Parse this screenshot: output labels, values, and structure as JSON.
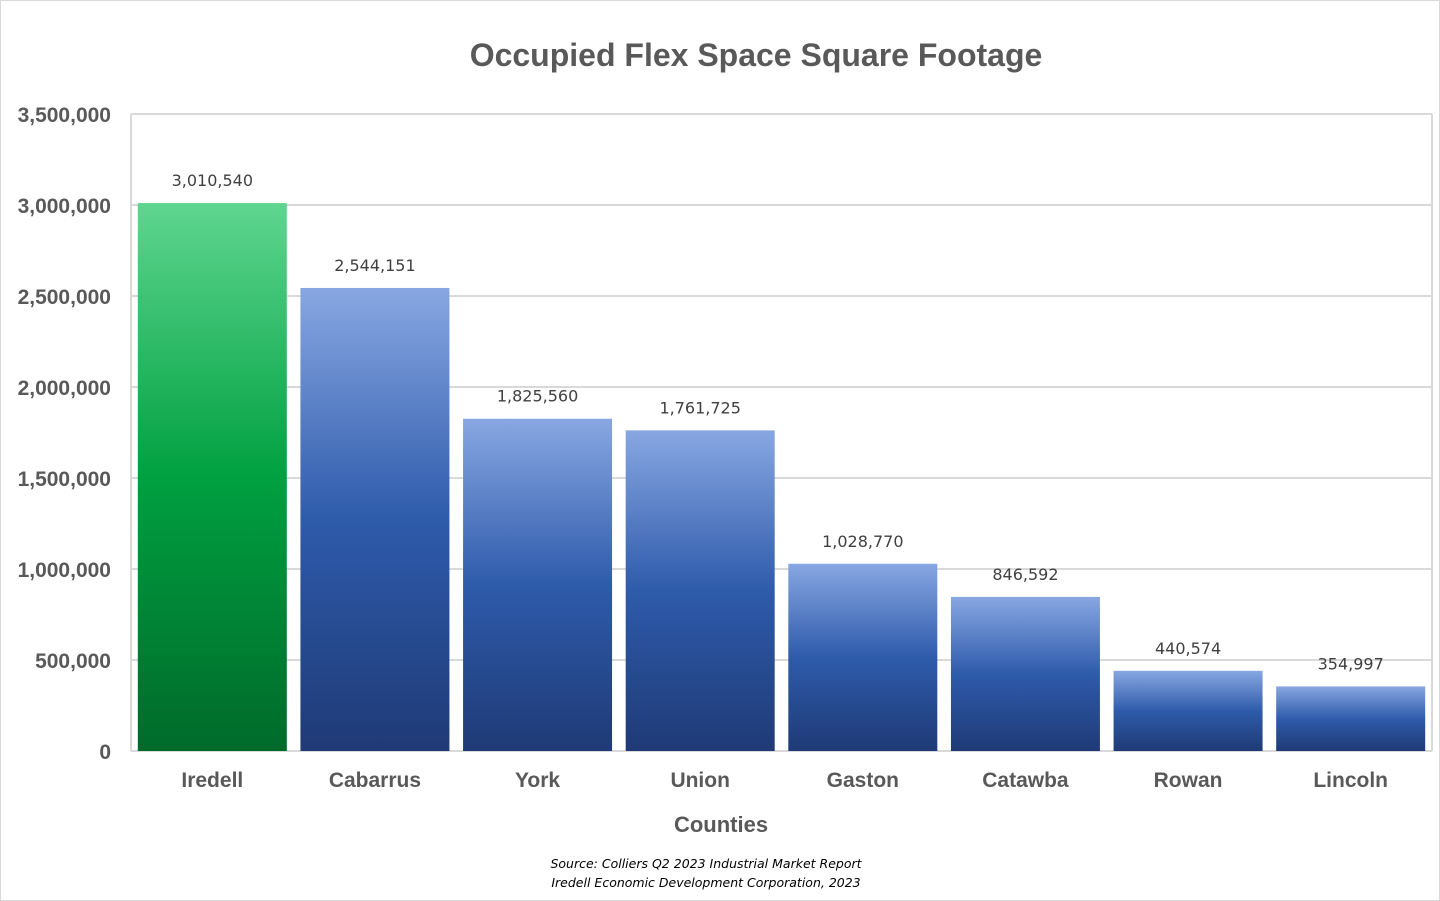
{
  "chart_data": {
    "type": "bar",
    "title": "Occupied Flex Space Square Footage",
    "xlabel": "Counties",
    "ylabel": "",
    "categories": [
      "Iredell",
      "Cabarrus",
      "York",
      "Union",
      "Gaston",
      "Catawba",
      "Rowan",
      "Lincoln"
    ],
    "values": [
      3010540,
      2544151,
      1825560,
      1761725,
      1028770,
      846592,
      440574,
      354997
    ],
    "data_labels": [
      "3,010,540",
      "2,544,151",
      "1,825,560",
      "1,761,725",
      "1,028,770",
      "846,592",
      "440,574",
      "354,997"
    ],
    "ylim": [
      0,
      3500000
    ],
    "yticks": [
      0,
      500000,
      1000000,
      1500000,
      2000000,
      2500000,
      3000000,
      3500000
    ],
    "ytick_labels": [
      "0",
      "500,000",
      "1,000,000",
      "1,500,000",
      "2,000,000",
      "2,500,000",
      "3,000,000",
      "3,500,000"
    ],
    "grid": true,
    "legend": "none",
    "highlight_category": "Iredell",
    "colors": {
      "highlight": "#00A040",
      "default": "#2E5BAA"
    },
    "source_lines": [
      "Source: Colliers Q2 2023 Industrial Market Report",
      "Iredell Economic Development Corporation, 2023"
    ]
  }
}
